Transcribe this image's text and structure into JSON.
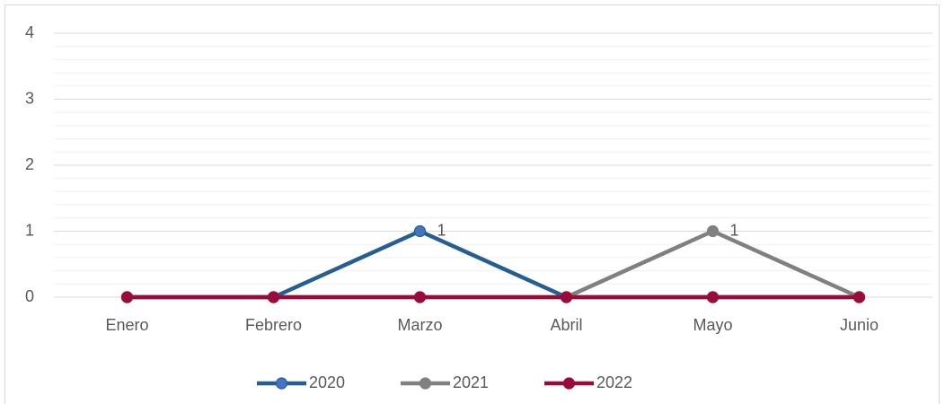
{
  "chart_data": {
    "type": "line",
    "categories": [
      "Enero",
      "Febrero",
      "Marzo",
      "Abril",
      "Mayo",
      "Junio"
    ],
    "series": [
      {
        "name": "2020",
        "color": "#255e91",
        "marker_color": "#4472c4",
        "values": [
          0,
          0,
          1,
          0,
          0,
          0
        ]
      },
      {
        "name": "2021",
        "color": "#808080",
        "marker_color": "#808080",
        "values": [
          0,
          0,
          0,
          0,
          1,
          0
        ]
      },
      {
        "name": "2022",
        "color": "#9b0a3a",
        "marker_color": "#9b0a3a",
        "values": [
          0,
          0,
          0,
          0,
          0,
          0
        ]
      }
    ],
    "ylim": [
      0,
      4
    ],
    "yticks": [
      0,
      1,
      2,
      3,
      4
    ],
    "grid": true,
    "minor_grid": true,
    "legend": "bottom"
  }
}
